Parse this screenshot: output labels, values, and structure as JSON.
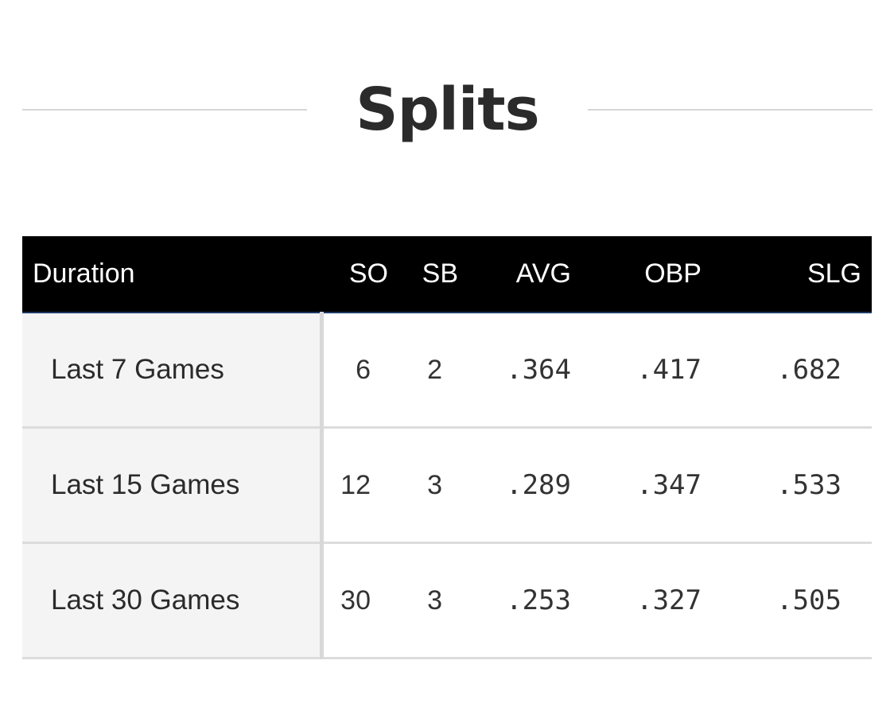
{
  "section": {
    "title": "Splits"
  },
  "table": {
    "columns": [
      "Duration",
      "SO",
      "SB",
      "AVG",
      "OBP",
      "SLG"
    ],
    "rows": [
      {
        "duration": "Last 7 Games",
        "so": "6",
        "sb": "2",
        "avg": ".364",
        "obp": ".417",
        "slg": ".682"
      },
      {
        "duration": "Last 15 Games",
        "so": "12",
        "sb": "3",
        "avg": ".289",
        "obp": ".347",
        "slg": ".533"
      },
      {
        "duration": "Last 30 Games",
        "so": "30",
        "sb": "3",
        "avg": ".253",
        "obp": ".327",
        "slg": ".505"
      }
    ]
  },
  "colors": {
    "header_bg": "#000000",
    "header_text": "#ffffff",
    "header_underline": "#1d3a66",
    "duration_cell_bg": "#f4f4f4",
    "row_divider": "#dcdcdc",
    "title_text": "#2b2b2b"
  }
}
